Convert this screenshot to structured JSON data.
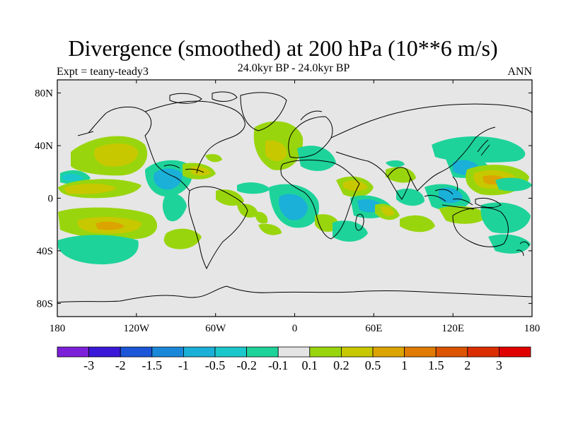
{
  "title": "Divergence (smoothed) at 200 hPa (10**6 m/s)",
  "left_label": "Expt = teany-teady3",
  "center_label": "24.0kyr BP - 24.0kyr BP",
  "right_label": "ANN",
  "map": {
    "projection": "cylindrical-equidistant",
    "lon_range": [
      -180,
      180
    ],
    "lat_range": [
      -90,
      90
    ],
    "background_color": "#e6e6e6",
    "y_ticks": [
      "80N",
      "40N",
      "0",
      "40S",
      "80S"
    ],
    "x_ticks": [
      "180",
      "120W",
      "60W",
      "0",
      "60E",
      "120E",
      "180"
    ]
  },
  "colorbar": {
    "labels": [
      "-3",
      "-2",
      "-1.5",
      "-1",
      "-0.5",
      "-0.2",
      "-0.1",
      "0.1",
      "0.2",
      "0.5",
      "1",
      "1.5",
      "2",
      "3"
    ],
    "colors": [
      "#7b1fd8",
      "#3a18d8",
      "#1b55d8",
      "#1a88d8",
      "#1ab0d8",
      "#1ac8cc",
      "#1ed39a",
      "#e4e4e4",
      "#99d50d",
      "#c8c800",
      "#dca400",
      "#e07a00",
      "#dd5400",
      "#db2e00",
      "#e00000"
    ]
  }
}
